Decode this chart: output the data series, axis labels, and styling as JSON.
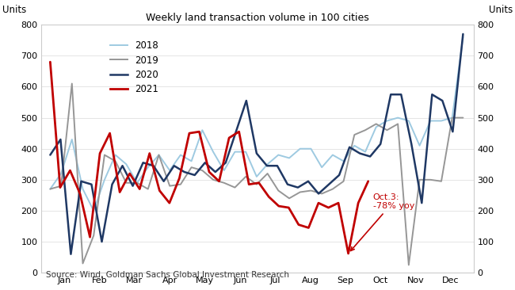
{
  "title": "Weekly land transaction volume in 100 cities",
  "ylabel_left": "Units",
  "ylabel_right": "Units",
  "source": "Source: Wind, Goldman Sachs Global Investment Research",
  "ylim": [
    0,
    800
  ],
  "yticks": [
    0,
    100,
    200,
    300,
    400,
    500,
    600,
    700,
    800
  ],
  "x_labels": [
    "Jan",
    "Feb",
    "Mar",
    "Apr",
    "May",
    "Jun",
    "Jul",
    "Aug",
    "Sep",
    "Oct",
    "Nov",
    "Dec"
  ],
  "annotation_text": "Oct.3:\n-78% yoy",
  "bg_color": "#ffffff",
  "plot_bg": "#ffffff",
  "series": {
    "2018": {
      "color": "#9ecae1",
      "linewidth": 1.4,
      "values": [
        270,
        320,
        430,
        270,
        200,
        300,
        380,
        350,
        290,
        340,
        380,
        330,
        380,
        360,
        460,
        390,
        330,
        390,
        390,
        310,
        350,
        380,
        370,
        400,
        400,
        340,
        380,
        360,
        410,
        390,
        470,
        490,
        500,
        490,
        410,
        490,
        490,
        500,
        760
      ]
    },
    "2019": {
      "color": "#969696",
      "linewidth": 1.4,
      "values": [
        270,
        280,
        610,
        30,
        120,
        380,
        360,
        290,
        290,
        270,
        380,
        280,
        285,
        340,
        330,
        300,
        290,
        275,
        310,
        285,
        320,
        265,
        240,
        260,
        265,
        255,
        270,
        295,
        445,
        460,
        480,
        460,
        480,
        25,
        300,
        300,
        295,
        500,
        500
      ]
    },
    "2020": {
      "color": "#1f3864",
      "linewidth": 1.8,
      "values": [
        380,
        430,
        60,
        295,
        285,
        100,
        285,
        345,
        280,
        355,
        345,
        295,
        345,
        325,
        315,
        355,
        325,
        355,
        455,
        555,
        385,
        345,
        345,
        285,
        275,
        295,
        255,
        285,
        315,
        405,
        385,
        375,
        415,
        575,
        575,
        415,
        225,
        575,
        555,
        455,
        770
      ]
    },
    "2021": {
      "color": "#c00000",
      "linewidth": 2.0,
      "values": [
        680,
        275,
        330,
        255,
        115,
        385,
        450,
        260,
        320,
        270,
        385,
        265,
        225,
        305,
        450,
        455,
        325,
        295,
        435,
        455,
        285,
        290,
        245,
        215,
        210,
        155,
        145,
        225,
        210,
        225,
        62,
        225,
        295,
        null,
        null,
        null,
        null,
        null,
        null
      ]
    }
  },
  "figsize": [
    6.5,
    3.66
  ],
  "dpi": 100
}
